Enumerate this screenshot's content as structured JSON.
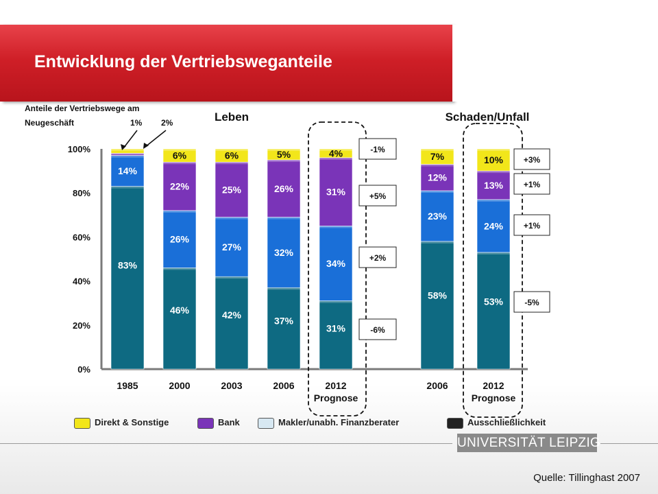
{
  "title": "Entwicklung der Vertriebsweganteile",
  "source": "Quelle: Tillinghast 2007",
  "logo_text": "UNIVERSITÄT LEIPZIG",
  "chart_data": {
    "type": "bar",
    "stacked": true,
    "ylim": [
      0,
      100
    ],
    "yticks": [
      "0%",
      "20%",
      "40%",
      "60%",
      "80%",
      "100%"
    ],
    "group_labels": [
      "Leben",
      "Schaden/Unfall"
    ],
    "annotation_heading": "Anteile der Vertriebswege am Neugeschäft",
    "annotation_values": [
      "1%",
      "2%"
    ],
    "categories": [
      {
        "label": "1985",
        "sub": ""
      },
      {
        "label": "2000",
        "sub": ""
      },
      {
        "label": "2003",
        "sub": ""
      },
      {
        "label": "2006",
        "sub": ""
      },
      {
        "label": "2012",
        "sub": "Prognose"
      },
      {
        "label": "2006",
        "sub": ""
      },
      {
        "label": "2012",
        "sub": "Prognose"
      }
    ],
    "series": [
      {
        "name": "Ausschließlichkeit",
        "color": "#0e6a82",
        "values": [
          83,
          46,
          42,
          37,
          31,
          58,
          53
        ],
        "labels": [
          "83%",
          "46%",
          "42%",
          "37%",
          "31%",
          "58%",
          "53%"
        ]
      },
      {
        "name": "Makler/unabh. Finanzberater",
        "color": "#1a6fd8",
        "values": [
          14,
          26,
          27,
          32,
          34,
          23,
          24
        ],
        "labels": [
          "14%",
          "26%",
          "27%",
          "32%",
          "34%",
          "23%",
          "24%"
        ]
      },
      {
        "name": "Bank",
        "color": "#7a34b8",
        "values": [
          1,
          22,
          25,
          26,
          31,
          12,
          13
        ],
        "labels": [
          "",
          "22%",
          "25%",
          "26%",
          "31%",
          "12%",
          "13%"
        ]
      },
      {
        "name": "Direkt & Sonstige",
        "color": "#f2e61a",
        "values": [
          2,
          6,
          6,
          5,
          4,
          7,
          10
        ],
        "labels": [
          "",
          "6%",
          "6%",
          "5%",
          "4%",
          "7%",
          "10%"
        ]
      }
    ],
    "change_boxes_leben": [
      "-1%",
      "+5%",
      "+2%",
      "-6%"
    ],
    "change_boxes_schaden": [
      "+3%",
      "+1%",
      "+1%",
      "-5%"
    ],
    "legend": [
      {
        "label": "Direkt & Sonstige",
        "color": "#f2e61a"
      },
      {
        "label": "Bank",
        "color": "#7a34b8"
      },
      {
        "label": "Makler/unabh. Finanzberater",
        "color": "#d7e8f2"
      },
      {
        "label": "Ausschließlichkeit",
        "color": "#222222"
      }
    ]
  }
}
